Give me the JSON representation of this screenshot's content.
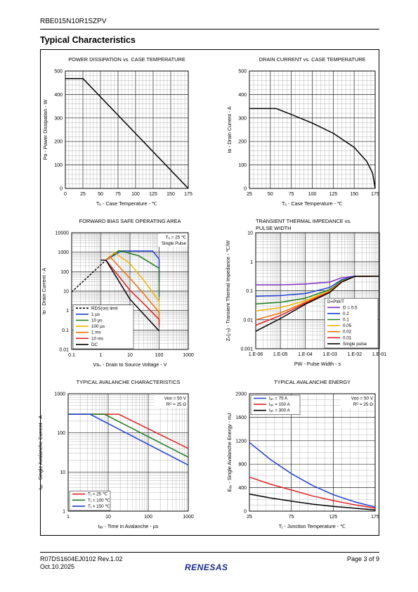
{
  "header": {
    "part_number": "RBE015N10R1SZPV"
  },
  "section_title": "Typical Characteristics",
  "footer": {
    "doc_id": "R07DS1604EJ0102  Rev.1.02",
    "date": "Oct.10.2025",
    "page": "Page 3 of 9",
    "logo_text": "RENESAS"
  },
  "charts": [
    {
      "id": "pd",
      "title": [
        "POWER DISSIPATION vs. CASE TEMPERATURE"
      ],
      "xlabel": "Tₑ - Case Temperature - ℃",
      "ylabel": "Pᴅ - Power Dissipation - W",
      "x_ticks": [
        "0",
        "25",
        "50",
        "75",
        "100",
        "125",
        "150",
        "175"
      ],
      "y_ticks": [
        "0",
        "100",
        "200",
        "300",
        "400",
        "500"
      ]
    },
    {
      "id": "id",
      "title": [
        "DRAIN CURRENT vs. CASE TEMPERATURE"
      ],
      "xlabel": "Tₑ - Case Temperature - ℃",
      "ylabel": "Iᴅ - Drain Current - A",
      "x_ticks": [
        "25",
        "50",
        "75",
        "100",
        "125",
        "150",
        "175"
      ],
      "y_ticks": [
        "0",
        "100",
        "200",
        "300",
        "400",
        "500"
      ]
    },
    {
      "id": "soa",
      "title": [
        "FORWARD BIAS SAFE OPERATING AREA"
      ],
      "xlabel": "Vᴅₛ - Drain to Source Voltage - V",
      "ylabel": "Iᴅ - Drain Current - A",
      "x_ticks": [
        "0.1",
        "1",
        "10",
        "100",
        "1000"
      ],
      "y_ticks": [
        "0.01",
        "0.1",
        "1",
        "10",
        "100",
        "1000",
        "10000"
      ],
      "note": [
        "Tₑ = 25 ℃",
        "Single Pulse"
      ],
      "legend": [
        "RDS(on) limit",
        "1 µs",
        "10 µs",
        "100 µs",
        "1 ms",
        "10 ms",
        "DC"
      ]
    },
    {
      "id": "zth",
      "title": [
        "TRANSIENT THERMAL IMPEDANCE vs.",
        "PULSE WIDTH"
      ],
      "xlabel": "PW - Pulse Width - s",
      "ylabel": "Zₕ(ⱼ-ₑ) - Transient Thermal Impedance - ℃/W",
      "x_ticks": [
        "1.E-06",
        "1.E-05",
        "1.E-04",
        "1.E-03",
        "1.E-02",
        "1.E-01"
      ],
      "y_ticks": [
        "0.001",
        "0.01",
        "0.1",
        "1",
        "10"
      ],
      "legend_title": "D=PW/T",
      "legend": [
        "D = 0.5",
        "0.2",
        "0.1",
        "0.05",
        "0.02",
        "0.01",
        "Single pulse"
      ]
    },
    {
      "id": "uis",
      "title": [
        "TYPICAL AVALANCHE CHARACTERISTICS"
      ],
      "xlabel": "tₐᵥ - Time in Avalanche - µs",
      "ylabel": "Iₐₛ - Single Avalanche Current - A",
      "x_ticks": [
        "1",
        "10",
        "100",
        "1000"
      ],
      "y_ticks": [
        "1",
        "10",
        "100",
        "1000"
      ],
      "note": [
        "Vᴅᴅ = 50 V",
        "Rᴳ = 25 Ω"
      ],
      "legend": [
        "Tⱼ = 25 ℃",
        "Tⱼ = 100 ℃",
        "Tⱼ = 150 ℃"
      ]
    },
    {
      "id": "eas",
      "title": [
        "TYPICAL AVALANCHE ENERGY"
      ],
      "xlabel": "Tⱼ - Junction Temperature - ℃",
      "ylabel": "Eₐₛ - Single Avalanche Energy - mJ",
      "x_ticks": [
        "25",
        "75",
        "125",
        "175"
      ],
      "y_ticks": [
        "0",
        "400",
        "800",
        "1200",
        "1600",
        "2000"
      ],
      "note": [
        "Vᴅᴅ = 50 V",
        "Rᴳ = 25 Ω"
      ],
      "legend": [
        "Iₐₛ = 75 A",
        "Iₐₛ = 150 A",
        "Iₐₛ = 300 A"
      ]
    }
  ],
  "chart_data": [
    {
      "type": "line",
      "title": "POWER DISSIPATION vs. CASE TEMPERATURE",
      "xlabel": "Tc - Case Temperature - ℃",
      "ylabel": "PD - Power Dissipation - W",
      "xlim": [
        0,
        175
      ],
      "ylim": [
        0,
        500
      ],
      "grid": true,
      "series": [
        {
          "color": "#000000",
          "x": [
            0,
            25,
            175
          ],
          "y": [
            468,
            468,
            0
          ]
        }
      ]
    },
    {
      "type": "line",
      "title": "DRAIN CURRENT vs. CASE TEMPERATURE",
      "xlabel": "Tc - Case Temperature - ℃",
      "ylabel": "ID - Drain Current - A",
      "xlim": [
        25,
        175
      ],
      "ylim": [
        0,
        500
      ],
      "grid": true,
      "series": [
        {
          "color": "#000000",
          "x": [
            25,
            57,
            75,
            100,
            125,
            150,
            165,
            172,
            175
          ],
          "y": [
            340,
            340,
            315,
            278,
            235,
            175,
            115,
            65,
            0
          ]
        }
      ]
    },
    {
      "type": "line",
      "title": "FORWARD BIAS SAFE OPERATING AREA",
      "xlabel": "VDS - Drain to Source Voltage - V",
      "ylabel": "ID - Drain Current - A",
      "xscale": "log",
      "yscale": "log",
      "xlim": [
        0.1,
        1000
      ],
      "ylim": [
        0.01,
        10000
      ],
      "grid": true,
      "legend_position": "bottom-left",
      "series": [
        {
          "name": "RDS(on) limit",
          "color": "#000000",
          "dash": true,
          "x": [
            0.1,
            1.5
          ],
          "y": [
            9,
            390
          ]
        },
        {
          "name": "1 µs",
          "color": "#1f3fd6",
          "x": [
            1.5,
            5,
            15,
            60,
            100,
            100
          ],
          "y": [
            390,
            1150,
            1150,
            1150,
            450,
            30
          ]
        },
        {
          "name": "10 µs",
          "color": "#1e7a1e",
          "x": [
            1.5,
            4,
            5,
            20,
            100,
            100
          ],
          "y": [
            390,
            1150,
            1150,
            650,
            150,
            5
          ]
        },
        {
          "name": "100 µs",
          "color": "#f0b400",
          "x": [
            1.5,
            3,
            10,
            30,
            100,
            100
          ],
          "y": [
            390,
            950,
            260,
            35,
            3,
            0.6
          ]
        },
        {
          "name": "1 ms",
          "color": "#f07000",
          "x": [
            1.5,
            2,
            10,
            30,
            100,
            100
          ],
          "y": [
            390,
            600,
            45,
            7,
            0.8,
            0.2
          ]
        },
        {
          "name": "10 ms",
          "color": "#e02020",
          "x": [
            1.5,
            10,
            30,
            100,
            100
          ],
          "y": [
            390,
            11,
            2.2,
            0.35,
            0.15
          ]
        },
        {
          "name": "DC",
          "color": "#000000",
          "x": [
            1.0,
            1.5,
            10,
            100
          ],
          "y": [
            390,
            390,
            3.8,
            0.09
          ]
        }
      ]
    },
    {
      "type": "line",
      "title": "TRANSIENT THERMAL IMPEDANCE vs. PULSE WIDTH",
      "xlabel": "PW - Pulse Width - s",
      "ylabel": "Zth(j-c) - Transient Thermal Impedance - ℃/W",
      "xscale": "log",
      "yscale": "log",
      "xlim": [
        1e-06,
        0.1
      ],
      "ylim": [
        0.001,
        10
      ],
      "grid": true,
      "legend_position": "bottom-right",
      "series": [
        {
          "name": "D = 0.5",
          "color": "#7b2fbf",
          "x": [
            1e-06,
            1e-05,
            0.0001,
            0.001,
            0.003,
            0.01,
            0.1
          ],
          "y": [
            0.16,
            0.16,
            0.17,
            0.2,
            0.28,
            0.32,
            0.32
          ]
        },
        {
          "name": "0.2",
          "color": "#1f3fd6",
          "x": [
            1e-06,
            1e-05,
            0.0001,
            0.001,
            0.003,
            0.01,
            0.1
          ],
          "y": [
            0.065,
            0.068,
            0.08,
            0.13,
            0.24,
            0.32,
            0.32
          ]
        },
        {
          "name": "0.1",
          "color": "#1e7a1e",
          "x": [
            1e-06,
            1e-05,
            0.0001,
            0.001,
            0.003,
            0.01,
            0.1
          ],
          "y": [
            0.035,
            0.04,
            0.055,
            0.11,
            0.22,
            0.31,
            0.32
          ]
        },
        {
          "name": "0.05",
          "color": "#f0b400",
          "x": [
            1e-06,
            1e-05,
            0.0001,
            0.001,
            0.003,
            0.01,
            0.1
          ],
          "y": [
            0.02,
            0.026,
            0.045,
            0.1,
            0.21,
            0.31,
            0.32
          ]
        },
        {
          "name": "0.02",
          "color": "#f07000",
          "x": [
            1e-06,
            1e-05,
            0.0001,
            0.001,
            0.003,
            0.01,
            0.1
          ],
          "y": [
            0.01,
            0.017,
            0.04,
            0.095,
            0.2,
            0.31,
            0.32
          ]
        },
        {
          "name": "0.01",
          "color": "#e02020",
          "x": [
            1e-06,
            1e-05,
            0.0001,
            0.001,
            0.003,
            0.01,
            0.1
          ],
          "y": [
            0.0065,
            0.014,
            0.037,
            0.09,
            0.2,
            0.31,
            0.32
          ]
        },
        {
          "name": "Single pulse",
          "color": "#000000",
          "x": [
            1e-06,
            1e-05,
            0.0001,
            0.001,
            0.003,
            0.01,
            0.1
          ],
          "y": [
            0.004,
            0.011,
            0.034,
            0.088,
            0.2,
            0.31,
            0.32
          ]
        }
      ]
    },
    {
      "type": "line",
      "title": "TYPICAL AVALANCHE CHARACTERISTICS",
      "xlabel": "tAV - Time in Avalanche - µs",
      "ylabel": "IAS - Single Avalanche Current - A",
      "xscale": "log",
      "yscale": "log",
      "xlim": [
        1,
        1000
      ],
      "ylim": [
        1,
        1000
      ],
      "grid": true,
      "legend_position": "bottom-left",
      "series": [
        {
          "name": "Tj = 25 ℃",
          "color": "#e02020",
          "x": [
            1,
            18,
            1000
          ],
          "y": [
            300,
            300,
            40
          ]
        },
        {
          "name": "Tj = 100 ℃",
          "color": "#1e7a1e",
          "x": [
            1,
            8,
            1000
          ],
          "y": [
            300,
            300,
            24
          ]
        },
        {
          "name": "Tj = 150 ℃",
          "color": "#1f3fd6",
          "x": [
            1,
            3.5,
            1000
          ],
          "y": [
            300,
            300,
            15
          ]
        }
      ]
    },
    {
      "type": "line",
      "title": "TYPICAL AVALANCHE ENERGY",
      "xlabel": "Tj - Junction Temperature - ℃",
      "ylabel": "EAS - Single Avalanche Energy - mJ",
      "xlim": [
        25,
        175
      ],
      "ylim": [
        0,
        2000
      ],
      "grid": true,
      "legend_position": "top-left",
      "series": [
        {
          "name": "IAS = 75 A",
          "color": "#1f3fd6",
          "x": [
            25,
            50,
            75,
            100,
            125,
            150,
            175
          ],
          "y": [
            1170,
            880,
            640,
            440,
            280,
            160,
            70
          ]
        },
        {
          "name": "IAS = 150 A",
          "color": "#e02020",
          "x": [
            25,
            50,
            75,
            100,
            125,
            150,
            175
          ],
          "y": [
            580,
            460,
            360,
            260,
            180,
            110,
            50
          ]
        },
        {
          "name": "IAS = 300 A",
          "color": "#000000",
          "x": [
            25,
            50,
            75,
            100,
            125,
            150,
            175
          ],
          "y": [
            290,
            225,
            170,
            120,
            80,
            50,
            20
          ]
        }
      ]
    }
  ]
}
